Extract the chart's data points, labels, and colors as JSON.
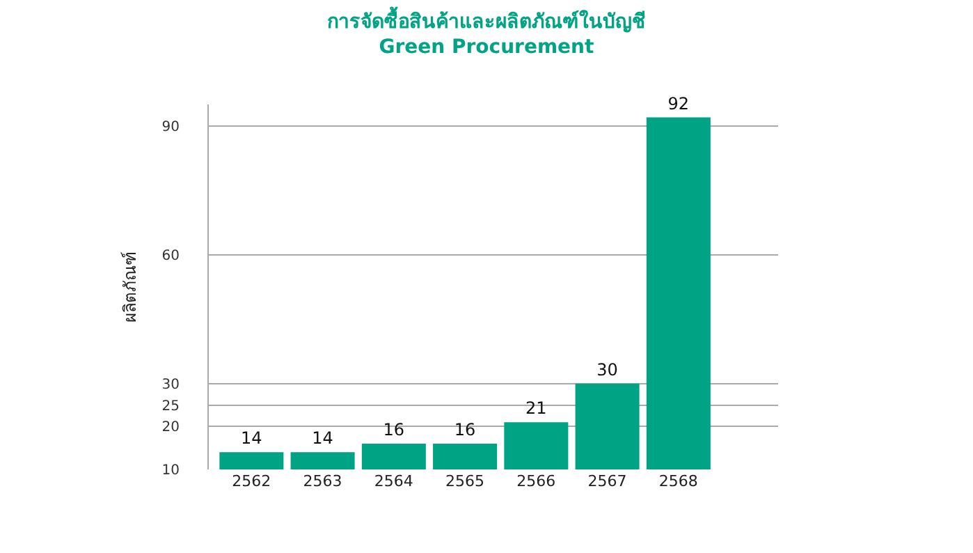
{
  "chart_data": {
    "type": "bar",
    "title": "การจัดซื้อสินค้าและผลิตภัณฑ์ในบัญชี",
    "subtitle": "Green Procurement",
    "ylabel": "ผลิตภัณฑ์",
    "categories": [
      "2562",
      "2563",
      "2564",
      "2565",
      "2566",
      "2567",
      "2568"
    ],
    "values": [
      14,
      14,
      16,
      16,
      21,
      30,
      92
    ],
    "color": "#00a383",
    "ylim": [
      10,
      95
    ],
    "yticks": [
      10,
      20,
      25,
      30,
      60,
      90
    ],
    "grid": "y",
    "data_labels": true
  }
}
